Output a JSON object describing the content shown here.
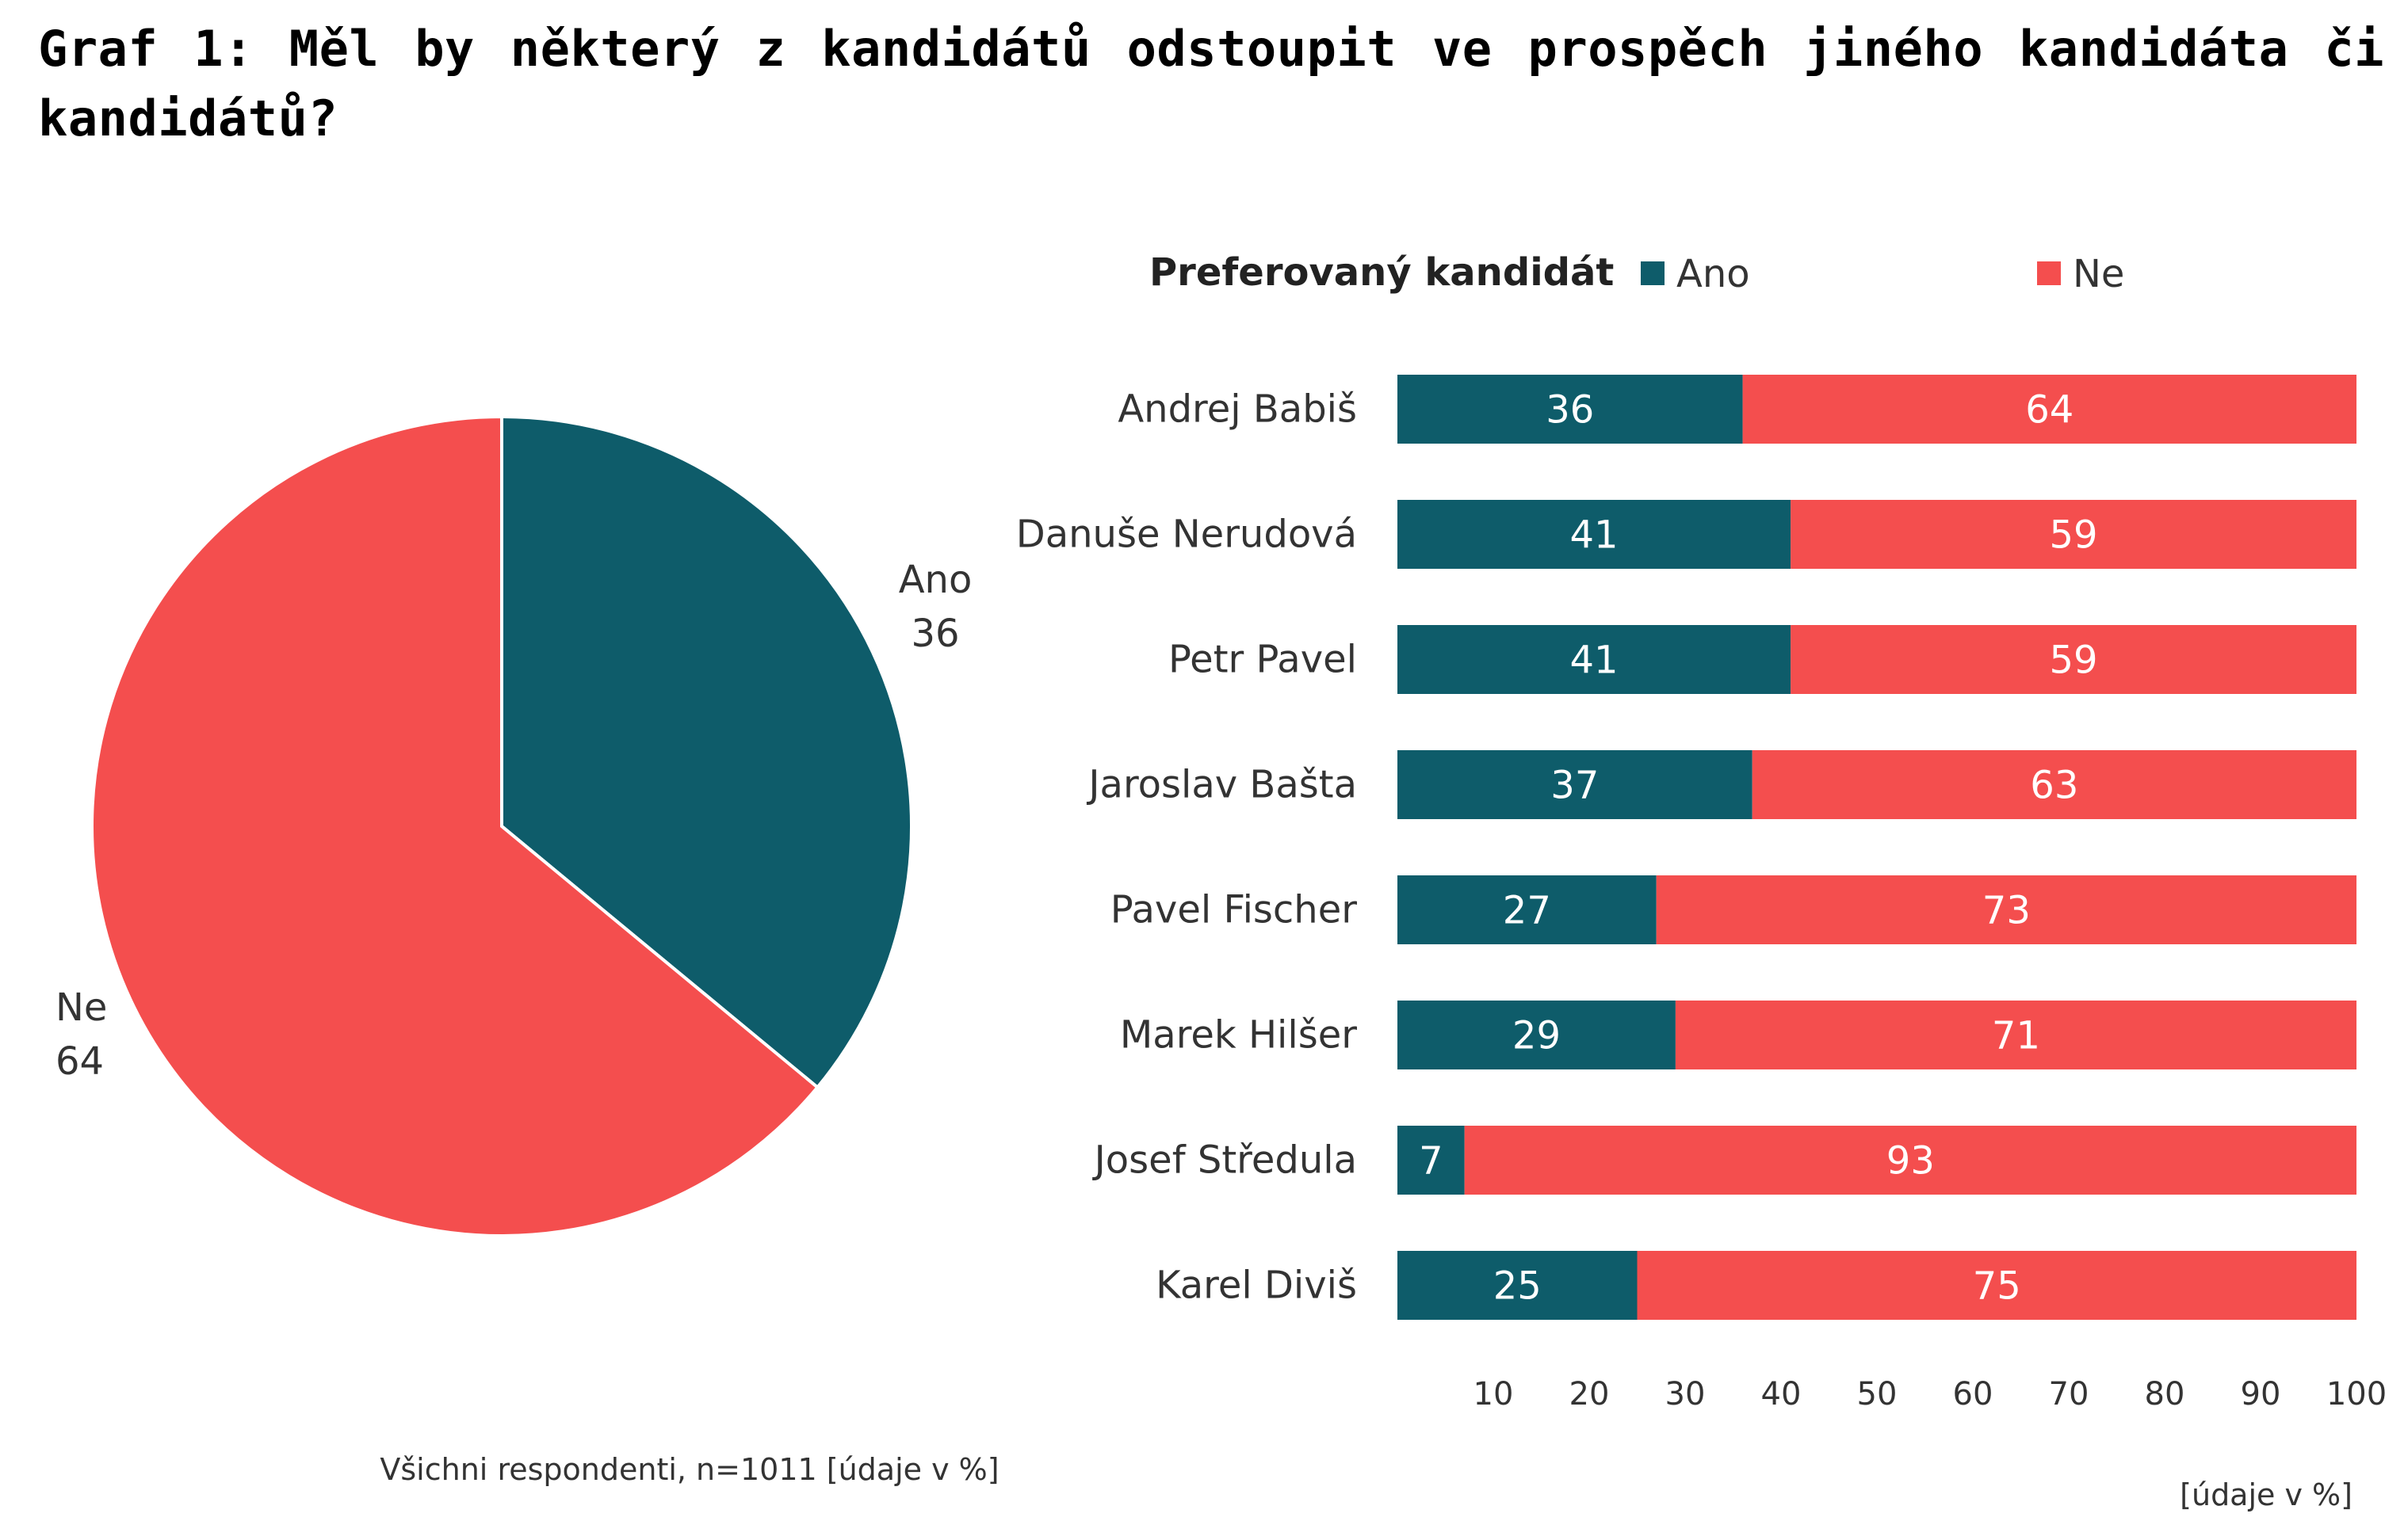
{
  "title": "Graf 1: Měl by některý z kandidátů odstoupit ve prospěch jiného kandidáta či kandidátů?",
  "chart_data": [
    {
      "type": "pie",
      "slices": [
        {
          "label": "Ano",
          "value": 36,
          "color": "#0e5c6a"
        },
        {
          "label": "Ne",
          "value": 64,
          "color": "#f44e4e"
        }
      ],
      "note": "Všichni respondenti, n=1011 [údaje v %]"
    },
    {
      "type": "bar",
      "orientation": "horizontal",
      "stacked": true,
      "legend_title": "Preferovaný kandidát",
      "categories": [
        "Andrej Babiš",
        "Danuše Nerudová",
        "Petr Pavel",
        "Jaroslav Bašta",
        "Pavel Fischer",
        "Marek Hilšer",
        "Josef Středula",
        "Karel Diviš"
      ],
      "series": [
        {
          "name": "Ano",
          "color": "#0e5c6a",
          "values": [
            36,
            41,
            41,
            37,
            27,
            29,
            7,
            25
          ]
        },
        {
          "name": "Ne",
          "color": "#f44e4e",
          "values": [
            64,
            59,
            59,
            63,
            73,
            71,
            93,
            75
          ]
        }
      ],
      "xlim": [
        0,
        100
      ],
      "xticks": [
        10,
        20,
        30,
        40,
        50,
        60,
        70,
        80,
        90,
        100
      ],
      "unit_note": "[údaje v %]"
    }
  ]
}
